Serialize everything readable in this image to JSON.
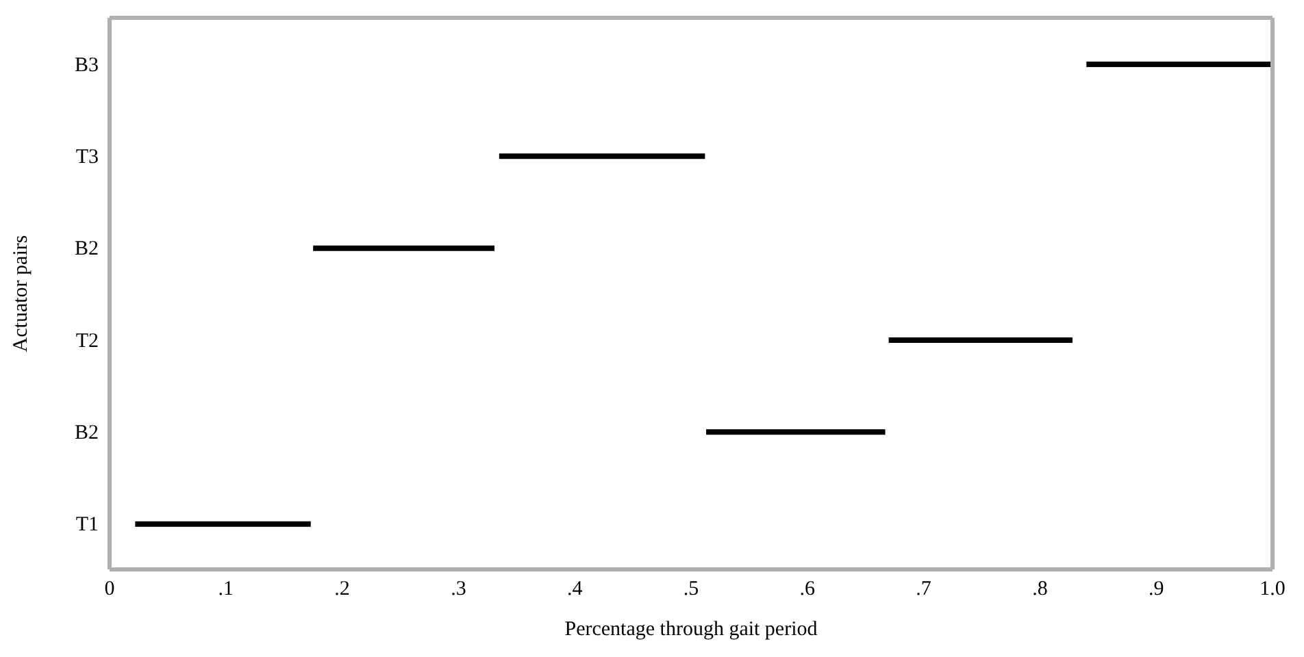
{
  "chart_data": {
    "type": "bar",
    "orientation": "horizontal",
    "xlabel": "Percentage through gait period",
    "ylabel": "Actuator pairs",
    "categories": [
      "B3",
      "T3",
      "B2",
      "T2",
      "B2",
      "T1"
    ],
    "base": [
      0.84,
      0.335,
      0.175,
      0.67,
      0.513,
      0.022
    ],
    "values": [
      0.16,
      0.177,
      0.156,
      0.158,
      0.154,
      0.151
    ],
    "color": "#000000",
    "xlim": [
      0,
      1.0
    ],
    "xticks": [
      0,
      {
        "value": 0.1,
        "label": ".1"
      },
      {
        "value": 0.2,
        "label": ".2"
      },
      {
        "value": 0.3,
        "label": ".3"
      },
      {
        "value": 0.4,
        "label": ".4"
      },
      {
        "value": 0.5,
        "label": ".5"
      },
      {
        "value": 0.6,
        "label": ".6"
      },
      {
        "value": 0.7,
        "label": ".7"
      },
      {
        "value": 0.8,
        "label": ".8"
      },
      {
        "value": 0.9,
        "label": ".9"
      },
      {
        "value": 1.0,
        "label": "1.0"
      }
    ],
    "grid": false,
    "legend": false
  }
}
